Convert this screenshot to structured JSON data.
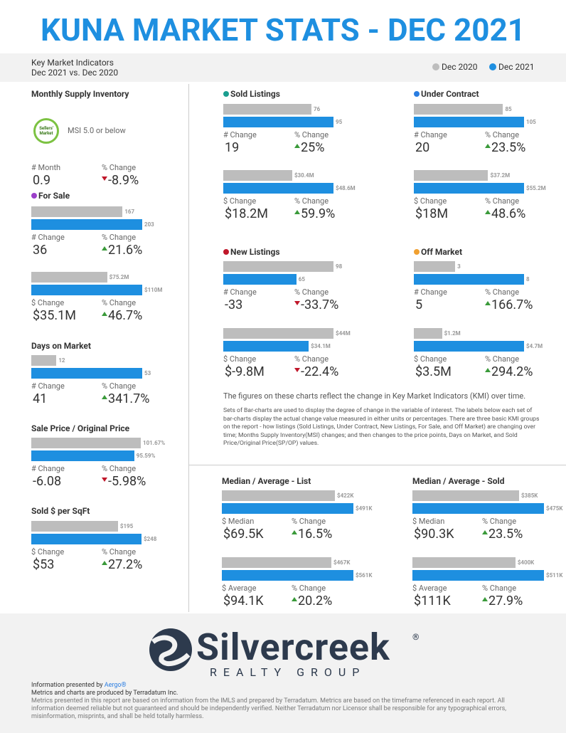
{
  "header": {
    "title": "KUNA MARKET STATS - DEC 2021",
    "subtitle": [
      "Key Market Indicators",
      "Dec 2021 vs. Dec 2020"
    ]
  },
  "legend": [
    {
      "name": "Dec 2020",
      "color": "#bdbdbd"
    },
    {
      "name": "Dec 2021",
      "color": "#1e8fe0"
    }
  ],
  "arrow_colors": {
    "up": "#3a9a3a",
    "down": "#c0172a"
  },
  "msi": {
    "title": "Monthly Supply Inventory",
    "badge": "Sellers' Market",
    "note": "MSI 5.0 or below",
    "change_label": "# Month",
    "change_value": "0.9",
    "pct_label": "% Change",
    "pct_value": "-8.9%",
    "direction": "down"
  },
  "groups": [
    {
      "title": "For Sale",
      "dot": "#9b3fc9",
      "blocks": [
        {
          "values": [
            167,
            203
          ],
          "change_label": "# Change",
          "change_value": "36",
          "pct_label": "% Change",
          "pct_value": "21.6%",
          "direction": "up"
        },
        {
          "values": [
            75200000,
            110000000
          ],
          "value_labels": [
            "$75.2M",
            "$110M"
          ],
          "change_label": "$ Change",
          "change_value": "$35.1M",
          "pct_label": "% Change",
          "pct_value": "46.7%",
          "direction": "up"
        }
      ]
    },
    {
      "title": "Days on Market",
      "blocks": [
        {
          "values": [
            12,
            53
          ],
          "change_label": "# Change",
          "change_value": "41",
          "pct_label": "% Change",
          "pct_value": "341.7%",
          "direction": "up"
        }
      ]
    },
    {
      "title": "Sale Price / Original Price",
      "blocks": [
        {
          "values": [
            101.67,
            95.59
          ],
          "value_labels": [
            "101.67%",
            "95.59%"
          ],
          "change_label": "# Change",
          "change_value": "-6.08",
          "pct_label": "% Change",
          "pct_value": "-5.98%",
          "direction": "down"
        }
      ]
    },
    {
      "title": "Sold $ per SqFt",
      "blocks": [
        {
          "values": [
            195,
            248
          ],
          "value_labels": [
            "$195",
            "$248"
          ],
          "change_label": "$ Change",
          "change_value": "$53",
          "pct_label": "% Change",
          "pct_value": "27.2%",
          "direction": "up"
        }
      ]
    },
    {
      "title": "Sold Listings",
      "dot": "#1a9e8f",
      "blocks": [
        {
          "values": [
            76,
            95
          ],
          "change_label": "# Change",
          "change_value": "19",
          "pct_label": "% Change",
          "pct_value": "25%",
          "direction": "up"
        },
        {
          "values": [
            30400000,
            48600000
          ],
          "value_labels": [
            "$30.4M",
            "$48.6M"
          ],
          "change_label": "$ Change",
          "change_value": "$18.2M",
          "pct_label": "% Change",
          "pct_value": "59.9%",
          "direction": "up"
        }
      ]
    },
    {
      "title": "Under Contract",
      "dot": "#2a7de1",
      "blocks": [
        {
          "values": [
            85,
            105
          ],
          "change_label": "# Change",
          "change_value": "20",
          "pct_label": "% Change",
          "pct_value": "23.5%",
          "direction": "up"
        },
        {
          "values": [
            37200000,
            55200000
          ],
          "value_labels": [
            "$37.2M",
            "$55.2M"
          ],
          "change_label": "$ Change",
          "change_value": "$18M",
          "pct_label": "% Change",
          "pct_value": "48.6%",
          "direction": "up"
        }
      ]
    },
    {
      "title": "New Listings",
      "dot": "#c0172a",
      "blocks": [
        {
          "values": [
            98,
            65
          ],
          "change_label": "# Change",
          "change_value": "-33",
          "pct_label": "% Change",
          "pct_value": "-33.7%",
          "direction": "down"
        },
        {
          "values": [
            44000000,
            34100000
          ],
          "value_labels": [
            "$44M",
            "$34.1M"
          ],
          "change_label": "$ Change",
          "change_value": "$-9.8M",
          "pct_label": "% Change",
          "pct_value": "-22.4%",
          "direction": "down"
        }
      ]
    },
    {
      "title": "Off Market",
      "dot": "#f0a030",
      "blocks": [
        {
          "values": [
            3,
            8
          ],
          "change_label": "# Change",
          "change_value": "5",
          "pct_label": "% Change",
          "pct_value": "166.7%",
          "direction": "up"
        },
        {
          "values": [
            1200000,
            4700000
          ],
          "value_labels": [
            "$1.2M",
            "$4.7M"
          ],
          "change_label": "$ Change",
          "change_value": "$3.5M",
          "pct_label": "% Change",
          "pct_value": "294.2%",
          "direction": "up"
        }
      ]
    },
    {
      "title": "Median / Average - List",
      "blocks": [
        {
          "values": [
            422000,
            491000
          ],
          "value_labels": [
            "$422K",
            "$491K"
          ],
          "change_label": "$ Median",
          "change_value": "$69.5K",
          "pct_label": "% Change",
          "pct_value": "16.5%",
          "direction": "up"
        },
        {
          "values": [
            467000,
            561000
          ],
          "value_labels": [
            "$467K",
            "$561K"
          ],
          "change_label": "$ Average",
          "change_value": "$94.1K",
          "pct_label": "% Change",
          "pct_value": "20.2%",
          "direction": "up"
        }
      ]
    },
    {
      "title": "Median / Average - Sold",
      "blocks": [
        {
          "values": [
            385000,
            475000
          ],
          "value_labels": [
            "$385K",
            "$475K"
          ],
          "change_label": "$ Median",
          "change_value": "$90.3K",
          "pct_label": "% Change",
          "pct_value": "23.5%",
          "direction": "up"
        },
        {
          "values": [
            400000,
            511000
          ],
          "value_labels": [
            "$400K",
            "$511K"
          ],
          "change_label": "$ Average",
          "change_value": "$111K",
          "pct_label": "% Change",
          "pct_value": "27.9%",
          "direction": "up"
        }
      ]
    }
  ],
  "explanation": [
    "The figures on these charts reflect the change in Key Market Indicators (KMI) over time.",
    "Sets of Bar-charts are used to display the degree of change in the variable of interest. The labels below each set of bar-charts display the actual change value measured in either units or percentages. There are three basic KMI groups on the report - how listings (Sold Listings, Under Contract, New Listings, For Sale, and Off Market) are changing over time; Months Supply Inventory(MSI) changes; and then changes to the price points, Days on Market, and Sold Price/Original Price(SP/OP) values."
  ],
  "logo": {
    "name": "Silvercreek",
    "mark": "®",
    "tagline": "REALTY GROUP"
  },
  "footer": {
    "presented_by": "Information presented by",
    "presented_link": "Aergo®",
    "produced_by": "Metrics and charts are produced by Terradatum Inc.",
    "disclaimer": "Metrics presented in this report are based on information from the IMLS and prepared by Terradatum. Metrics are based on the timeframe referenced in each report. All information deemed reliable but not guaranteed and should be independently verified. Neither Terradatum nor Licensor shall be responsible for any typographical errors, misinformation, misprints, and shall be held totally harmless."
  }
}
